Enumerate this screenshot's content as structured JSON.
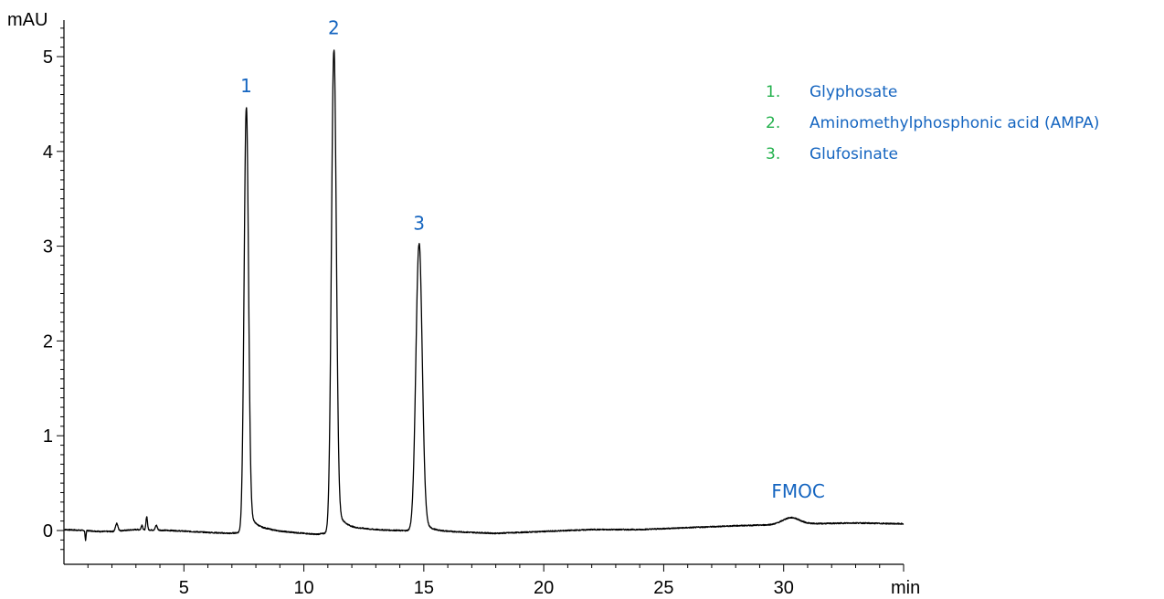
{
  "colors": {
    "annotation": "#1565c0",
    "legend_number": "#22b14c",
    "trace": "#000000"
  },
  "chart_data": {
    "type": "line",
    "xlabel": "min",
    "ylabel": "mAU",
    "xlim": [
      0,
      35
    ],
    "ylim": [
      -0.3,
      5.4
    ],
    "x_ticks": [
      5,
      10,
      15,
      20,
      25,
      30
    ],
    "y_ticks": [
      0,
      1,
      2,
      3,
      4,
      5
    ],
    "grid": false,
    "baseline": [
      [
        0.0,
        0.01
      ],
      [
        0.9,
        0.0
      ],
      [
        1.5,
        -0.01
      ],
      [
        2.0,
        -0.01
      ],
      [
        2.5,
        0.0
      ],
      [
        3.0,
        0.01
      ],
      [
        4.5,
        0.0
      ],
      [
        6.0,
        -0.02
      ],
      [
        6.9,
        -0.03
      ],
      [
        8.5,
        0.0
      ],
      [
        9.5,
        -0.02
      ],
      [
        10.5,
        -0.04
      ],
      [
        10.9,
        -0.03
      ],
      [
        12.5,
        0.01
      ],
      [
        14.0,
        0.0
      ],
      [
        16.0,
        -0.01
      ],
      [
        18.0,
        -0.03
      ],
      [
        20.0,
        -0.01
      ],
      [
        22.0,
        0.01
      ],
      [
        24.0,
        0.01
      ],
      [
        26.0,
        0.03
      ],
      [
        28.0,
        0.05
      ],
      [
        29.5,
        0.06
      ],
      [
        31.0,
        0.07
      ],
      [
        33.0,
        0.08
      ],
      [
        35.0,
        0.07
      ]
    ],
    "peaks": [
      {
        "label": "1",
        "rt": 7.6,
        "height": 4.47,
        "width": 0.09,
        "tail": 0.35
      },
      {
        "label": "2",
        "rt": 11.25,
        "height": 5.08,
        "width": 0.1,
        "tail": 0.4
      },
      {
        "label": "3",
        "rt": 14.8,
        "height": 3.02,
        "width": 0.13,
        "tail": 0.3
      },
      {
        "label": "FMOC",
        "rt": 30.3,
        "height": 0.07,
        "width": 0.35,
        "tail": 0.5
      },
      {
        "label": "",
        "rt": 2.2,
        "height": 0.08,
        "width": 0.05,
        "tail": 0.15
      },
      {
        "label": "",
        "rt": 3.45,
        "height": 0.14,
        "width": 0.03,
        "tail": 0.05
      },
      {
        "label": "",
        "rt": 3.25,
        "height": 0.05,
        "width": 0.03,
        "tail": 0.05
      },
      {
        "label": "",
        "rt": 3.85,
        "height": 0.05,
        "width": 0.04,
        "tail": 0.08
      },
      {
        "label": "",
        "rt": 0.9,
        "height": -0.1,
        "width": 0.02,
        "tail": 0.01
      }
    ],
    "annotations": [
      "1",
      "2",
      "3",
      "FMOC"
    ],
    "legend": [
      {
        "number": "1.",
        "name": "Glyphosate"
      },
      {
        "number": "2.",
        "name": "Aminomethylphosphonic acid (AMPA)"
      },
      {
        "number": "3.",
        "name": "Glufosinate"
      }
    ],
    "legend_position": "top-right"
  }
}
